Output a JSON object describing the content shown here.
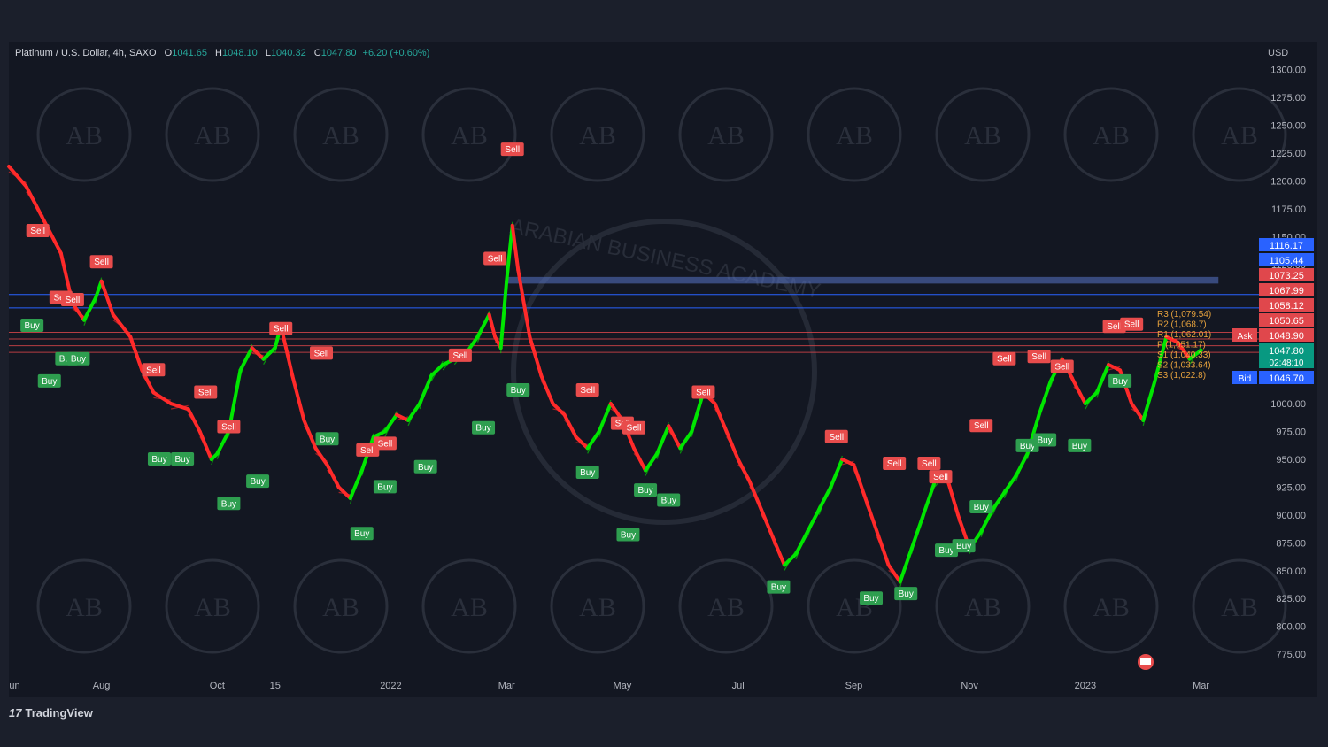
{
  "header": {
    "symbol": "Platinum / U.S. Dollar, 4h, SAXO",
    "o_label": "O",
    "o": "1041.65",
    "h_label": "H",
    "h": "1048.10",
    "l_label": "L",
    "l": "1040.32",
    "c_label": "C",
    "c": "1047.80",
    "change": "+6.20 (+0.60%)"
  },
  "currency": "USD",
  "brand": "TradingView",
  "watermark_text": "ARABIAN BUSINESS ACADEMY",
  "watermark_initials": "AB",
  "colors": {
    "bg": "#131722",
    "up": "#00e600",
    "down": "#ff2a2a",
    "buy": "#2e9e4f",
    "sell": "#e84c4c",
    "pivot": "#e8a33d",
    "band": "#5874c8",
    "res": "#e0474c"
  },
  "chart_data": {
    "type": "line",
    "title": "Platinum / U.S. Dollar, 4h, SAXO",
    "ylim": [
      760,
      1310
    ],
    "y_ticks": [
      "1300.00",
      "1275.00",
      "1250.00",
      "1225.00",
      "1200.00",
      "1175.00",
      "1150.00",
      "1125.00",
      "1100.00",
      "1075.00",
      "1050.00",
      "1025.00",
      "1000.00",
      "975.00",
      "950.00",
      "925.00",
      "900.00",
      "875.00",
      "850.00",
      "825.00",
      "800.00",
      "775.00"
    ],
    "y_tick_values": [
      1300,
      1275,
      1250,
      1225,
      1200,
      1175,
      1150,
      1125,
      1100,
      1075,
      1050,
      1025,
      1000,
      975,
      950,
      925,
      900,
      875,
      850,
      825,
      800,
      775
    ],
    "x_ticks": [
      "un",
      "Aug",
      "Oct",
      "15",
      "2022",
      "Mar",
      "May",
      "Jul",
      "Sep",
      "Nov",
      "2023",
      "Mar"
    ],
    "x_tick_values": [
      0.5,
      2,
      4,
      5,
      7,
      9,
      11,
      13,
      15,
      17,
      19,
      21
    ],
    "xlim": [
      0.4,
      22.0
    ],
    "series": [
      {
        "values_xy": [
          [
            0.4,
            1213
          ],
          [
            0.7,
            1195
          ],
          [
            1.0,
            1165
          ],
          [
            1.3,
            1135
          ],
          [
            1.5,
            1090
          ],
          [
            1.7,
            1075
          ],
          [
            1.9,
            1095
          ],
          [
            2.0,
            1110
          ],
          [
            2.2,
            1080
          ],
          [
            2.5,
            1060
          ],
          [
            2.7,
            1030
          ],
          [
            2.9,
            1010
          ],
          [
            3.2,
            1000
          ],
          [
            3.5,
            995
          ],
          [
            3.7,
            975
          ],
          [
            3.9,
            950
          ],
          [
            4.0,
            955
          ],
          [
            4.2,
            975
          ],
          [
            4.4,
            1030
          ],
          [
            4.6,
            1050
          ],
          [
            4.8,
            1040
          ],
          [
            5.0,
            1050
          ],
          [
            5.1,
            1070
          ],
          [
            5.3,
            1025
          ],
          [
            5.5,
            985
          ],
          [
            5.7,
            960
          ],
          [
            5.9,
            945
          ],
          [
            6.1,
            925
          ],
          [
            6.3,
            915
          ],
          [
            6.5,
            940
          ],
          [
            6.7,
            970
          ],
          [
            6.9,
            975
          ],
          [
            7.1,
            990
          ],
          [
            7.3,
            985
          ],
          [
            7.5,
            1000
          ],
          [
            7.7,
            1025
          ],
          [
            7.9,
            1035
          ],
          [
            8.1,
            1040
          ],
          [
            8.3,
            1045
          ],
          [
            8.5,
            1060
          ],
          [
            8.7,
            1080
          ],
          [
            8.8,
            1060
          ],
          [
            8.9,
            1050
          ],
          [
            9.0,
            1110
          ],
          [
            9.1,
            1160
          ],
          [
            9.2,
            1120
          ],
          [
            9.4,
            1060
          ],
          [
            9.6,
            1025
          ],
          [
            9.8,
            1000
          ],
          [
            10.0,
            990
          ],
          [
            10.2,
            970
          ],
          [
            10.4,
            960
          ],
          [
            10.6,
            975
          ],
          [
            10.8,
            1000
          ],
          [
            11.0,
            985
          ],
          [
            11.2,
            960
          ],
          [
            11.4,
            940
          ],
          [
            11.6,
            955
          ],
          [
            11.8,
            980
          ],
          [
            12.0,
            960
          ],
          [
            12.2,
            975
          ],
          [
            12.4,
            1010
          ],
          [
            12.6,
            1000
          ],
          [
            12.8,
            975
          ],
          [
            13.0,
            950
          ],
          [
            13.2,
            930
          ],
          [
            13.4,
            905
          ],
          [
            13.6,
            880
          ],
          [
            13.8,
            855
          ],
          [
            14.0,
            865
          ],
          [
            14.2,
            885
          ],
          [
            14.4,
            905
          ],
          [
            14.6,
            925
          ],
          [
            14.8,
            950
          ],
          [
            15.0,
            945
          ],
          [
            15.2,
            915
          ],
          [
            15.4,
            885
          ],
          [
            15.6,
            855
          ],
          [
            15.8,
            840
          ],
          [
            16.0,
            870
          ],
          [
            16.2,
            900
          ],
          [
            16.4,
            930
          ],
          [
            16.6,
            935
          ],
          [
            16.8,
            900
          ],
          [
            17.0,
            870
          ],
          [
            17.2,
            885
          ],
          [
            17.4,
            905
          ],
          [
            17.6,
            920
          ],
          [
            17.8,
            935
          ],
          [
            18.0,
            955
          ],
          [
            18.2,
            990
          ],
          [
            18.4,
            1020
          ],
          [
            18.6,
            1040
          ],
          [
            18.8,
            1020
          ],
          [
            19.0,
            1000
          ],
          [
            19.2,
            1010
          ],
          [
            19.4,
            1035
          ],
          [
            19.6,
            1030
          ],
          [
            19.8,
            1000
          ],
          [
            20.0,
            985
          ],
          [
            20.2,
            1020
          ],
          [
            20.4,
            1060
          ],
          [
            20.6,
            1055
          ],
          [
            20.8,
            1040
          ],
          [
            21.0,
            1047.8
          ]
        ]
      }
    ],
    "signals": [
      {
        "type": "Sell",
        "x": 0.9,
        "y": 1155
      },
      {
        "type": "Buy",
        "x": 0.8,
        "y": 1070
      },
      {
        "type": "Sell",
        "x": 1.3,
        "y": 1095
      },
      {
        "type": "Sell",
        "x": 1.5,
        "y": 1093
      },
      {
        "type": "Sell",
        "x": 2.0,
        "y": 1127
      },
      {
        "type": "Buy",
        "x": 1.4,
        "y": 1040
      },
      {
        "type": "Buy",
        "x": 1.6,
        "y": 1040
      },
      {
        "type": "Buy",
        "x": 1.1,
        "y": 1020
      },
      {
        "type": "Sell",
        "x": 2.9,
        "y": 1030
      },
      {
        "type": "Sell",
        "x": 3.8,
        "y": 1010
      },
      {
        "type": "Sell",
        "x": 4.2,
        "y": 979
      },
      {
        "type": "Buy",
        "x": 3.0,
        "y": 950
      },
      {
        "type": "Buy",
        "x": 3.4,
        "y": 950
      },
      {
        "type": "Buy",
        "x": 4.2,
        "y": 910
      },
      {
        "type": "Buy",
        "x": 4.7,
        "y": 930
      },
      {
        "type": "Sell",
        "x": 5.1,
        "y": 1067
      },
      {
        "type": "Sell",
        "x": 5.8,
        "y": 1045
      },
      {
        "type": "Buy",
        "x": 5.9,
        "y": 968
      },
      {
        "type": "Sell",
        "x": 6.6,
        "y": 958
      },
      {
        "type": "Sell",
        "x": 6.9,
        "y": 964
      },
      {
        "type": "Buy",
        "x": 6.5,
        "y": 883
      },
      {
        "type": "Buy",
        "x": 6.9,
        "y": 925
      },
      {
        "type": "Buy",
        "x": 7.6,
        "y": 943
      },
      {
        "type": "Sell",
        "x": 8.2,
        "y": 1043
      },
      {
        "type": "Sell",
        "x": 8.8,
        "y": 1130
      },
      {
        "type": "Sell",
        "x": 9.1,
        "y": 1228
      },
      {
        "type": "Buy",
        "x": 8.6,
        "y": 978
      },
      {
        "type": "Buy",
        "x": 9.2,
        "y": 1012
      },
      {
        "type": "Sell",
        "x": 10.4,
        "y": 1012
      },
      {
        "type": "Sell",
        "x": 11.0,
        "y": 982
      },
      {
        "type": "Sell",
        "x": 11.2,
        "y": 978
      },
      {
        "type": "Buy",
        "x": 10.4,
        "y": 938
      },
      {
        "type": "Buy",
        "x": 11.1,
        "y": 882
      },
      {
        "type": "Buy",
        "x": 11.4,
        "y": 922
      },
      {
        "type": "Buy",
        "x": 11.8,
        "y": 913
      },
      {
        "type": "Sell",
        "x": 12.4,
        "y": 1010
      },
      {
        "type": "Buy",
        "x": 13.7,
        "y": 835
      },
      {
        "type": "Sell",
        "x": 14.7,
        "y": 970
      },
      {
        "type": "Buy",
        "x": 15.3,
        "y": 825
      },
      {
        "type": "Buy",
        "x": 15.9,
        "y": 829
      },
      {
        "type": "Sell",
        "x": 15.7,
        "y": 946
      },
      {
        "type": "Sell",
        "x": 16.3,
        "y": 946
      },
      {
        "type": "Sell",
        "x": 16.5,
        "y": 934
      },
      {
        "type": "Buy",
        "x": 16.6,
        "y": 868
      },
      {
        "type": "Buy",
        "x": 16.9,
        "y": 872
      },
      {
        "type": "Buy",
        "x": 17.2,
        "y": 907
      },
      {
        "type": "Sell",
        "x": 17.2,
        "y": 980
      },
      {
        "type": "Sell",
        "x": 17.6,
        "y": 1040
      },
      {
        "type": "Sell",
        "x": 18.2,
        "y": 1042
      },
      {
        "type": "Sell",
        "x": 18.6,
        "y": 1033
      },
      {
        "type": "Buy",
        "x": 18.0,
        "y": 962
      },
      {
        "type": "Buy",
        "x": 18.3,
        "y": 967
      },
      {
        "type": "Buy",
        "x": 18.9,
        "y": 962
      },
      {
        "type": "Sell",
        "x": 19.5,
        "y": 1069
      },
      {
        "type": "Sell",
        "x": 19.8,
        "y": 1071
      },
      {
        "type": "Buy",
        "x": 19.6,
        "y": 1020
      }
    ],
    "levels": [
      {
        "name": "R3",
        "label": "R3 (1,079.54)",
        "value": 1079.54
      },
      {
        "name": "R2",
        "label": "R2 (1,068.7)",
        "value": 1068.7
      },
      {
        "name": "R1",
        "label": "R1 (1,062.01)",
        "value": 1062.01
      },
      {
        "name": "P",
        "label": "P (1,051.17)",
        "value": 1051.17
      },
      {
        "name": "S1",
        "label": "S1 (1,040.33)",
        "value": 1040.33
      },
      {
        "name": "S2",
        "label": "S2 (1,033.64)",
        "value": 1033.64
      },
      {
        "name": "S3",
        "label": "S3 (1,022.8)",
        "value": 1022.8
      }
    ],
    "price_tags": [
      {
        "text": "1116.17",
        "value": 1116.17,
        "color": "#2962ff"
      },
      {
        "text": "1105.44",
        "value": 1105.44,
        "color": "#2962ff"
      },
      {
        "text": "1073.25",
        "value": 1073.25,
        "color": "#e0474c"
      },
      {
        "text": "1067.99",
        "value": 1067.99,
        "color": "#e0474c"
      },
      {
        "text": "1058.12",
        "value": 1058.12,
        "color": "#e0474c"
      },
      {
        "text": "1050.65",
        "value": 1050.65,
        "color": "#e0474c"
      },
      {
        "text": "1048.90",
        "value": 1048.9,
        "color": "#e0474c",
        "badge": "Ask"
      },
      {
        "text": "1047.80",
        "value": 1047.8,
        "color": "#089981",
        "sub": "02:48:10"
      },
      {
        "text": "1046.70",
        "value": 1046.7,
        "color": "#2962ff",
        "badge": "Bid"
      }
    ],
    "zone": {
      "from": 1105.44,
      "to": 1116.17
    }
  }
}
